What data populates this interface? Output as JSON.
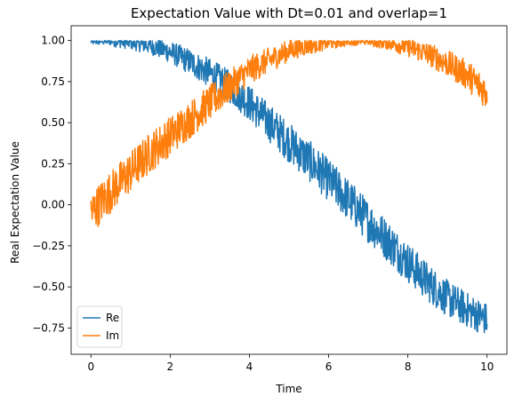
{
  "chart_data": {
    "type": "line",
    "title": "Expectation Value with Dt=0.01 and overlap=1",
    "xlabel": "Time",
    "ylabel": "Real Expectation Value",
    "xlim": [
      -0.5,
      10.5
    ],
    "ylim": [
      -0.91,
      1.09
    ],
    "xticks": [
      0,
      2,
      4,
      6,
      8,
      10
    ],
    "xtick_labels": [
      "0",
      "2",
      "4",
      "6",
      "8",
      "10"
    ],
    "yticks": [
      -0.75,
      -0.5,
      -0.25,
      0.0,
      0.25,
      0.5,
      0.75,
      1.0
    ],
    "ytick_labels": [
      "−0.75",
      "−0.50",
      "−0.25",
      "0.00",
      "0.25",
      "0.50",
      "0.75",
      "1.00"
    ],
    "grid": false,
    "legend_position": "lower-left",
    "series": [
      {
        "name": "Re",
        "color": "#1f77b4",
        "x": [
          0,
          0.5,
          1,
          1.5,
          2,
          2.5,
          3,
          3.5,
          4,
          4.5,
          5,
          5.5,
          6,
          6.5,
          7,
          7.5,
          8,
          8.5,
          9,
          9.5,
          10
        ],
        "y": [
          1.0,
          1.0,
          0.99,
          0.97,
          0.93,
          0.87,
          0.8,
          0.72,
          0.62,
          0.5,
          0.38,
          0.27,
          0.15,
          0.03,
          -0.1,
          -0.22,
          -0.35,
          -0.47,
          -0.57,
          -0.64,
          -0.7
        ]
      },
      {
        "name": "Im",
        "color": "#ff7f0e",
        "x": [
          0,
          0.5,
          1,
          1.5,
          2,
          2.5,
          3,
          3.5,
          4,
          4.5,
          5,
          5.5,
          6,
          6.5,
          7,
          7.5,
          8,
          8.5,
          9,
          9.5,
          10
        ],
        "y": [
          -0.05,
          0.08,
          0.2,
          0.32,
          0.42,
          0.52,
          0.62,
          0.72,
          0.82,
          0.88,
          0.94,
          0.97,
          0.99,
          1.0,
          1.0,
          0.99,
          0.96,
          0.92,
          0.86,
          0.79,
          0.68
        ]
      }
    ]
  }
}
